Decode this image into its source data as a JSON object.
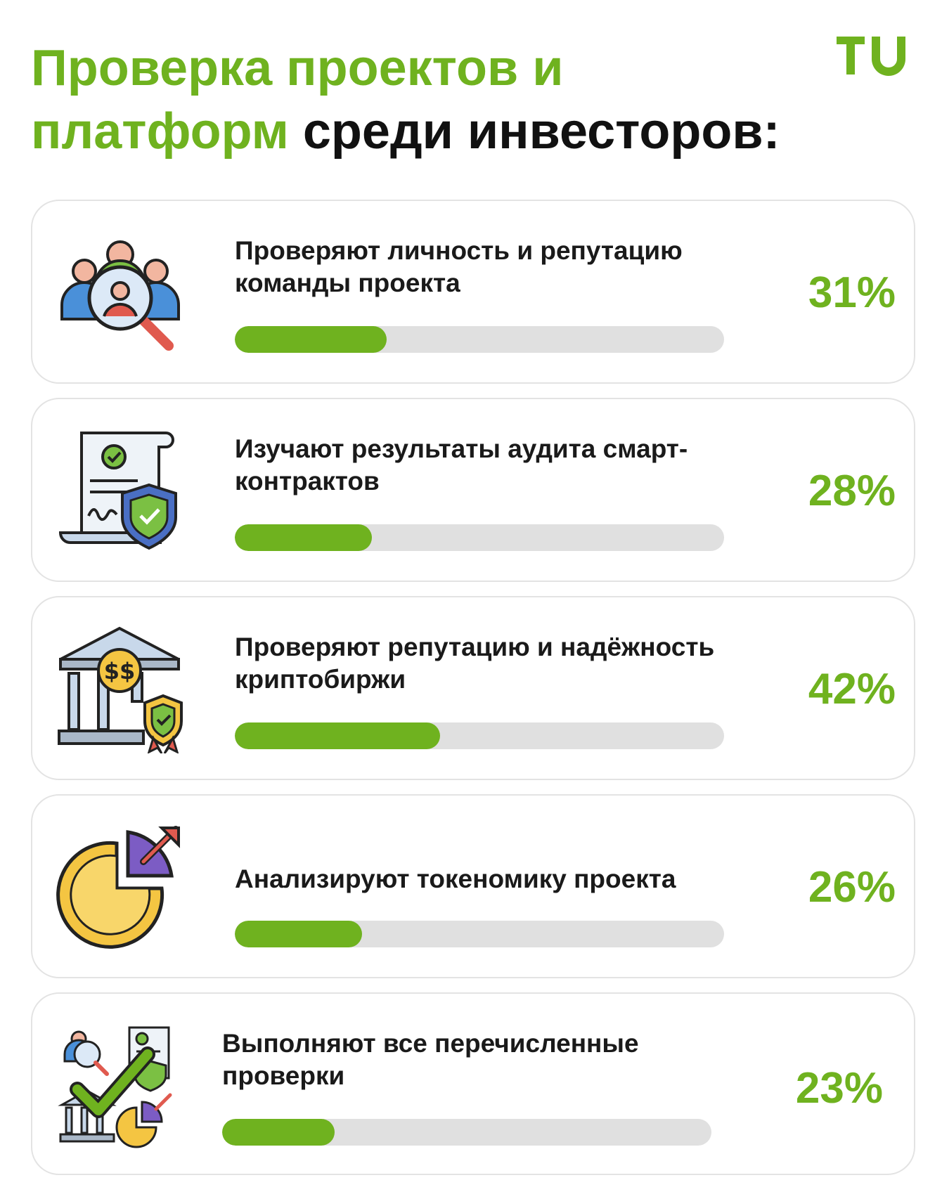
{
  "title": {
    "green_part": "Проверка проектов и платформ",
    "black_part": "среди инвесторов:"
  },
  "brand_color": "#6fb21f",
  "logo_text": "TU",
  "chart_data": {
    "type": "bar",
    "categories": [
      "Проверяют личность и репутацию команды проекта",
      "Изучают результаты аудита смарт-контрактов",
      "Проверяют репутацию и надёжность криптобиржи",
      "Анализируют токеномику проекта",
      "Выполняют все перечисленные проверки"
    ],
    "values": [
      31,
      28,
      42,
      26,
      23
    ],
    "value_labels": [
      "31%",
      "28%",
      "42%",
      "26%",
      "23%"
    ],
    "icons": [
      "team-search-icon",
      "audit-document-icon",
      "bank-shield-icon",
      "pie-chart-growth-icon",
      "all-checks-icon"
    ],
    "title": "Проверка проектов и платформ среди инвесторов:",
    "ylim": [
      0,
      100
    ]
  }
}
